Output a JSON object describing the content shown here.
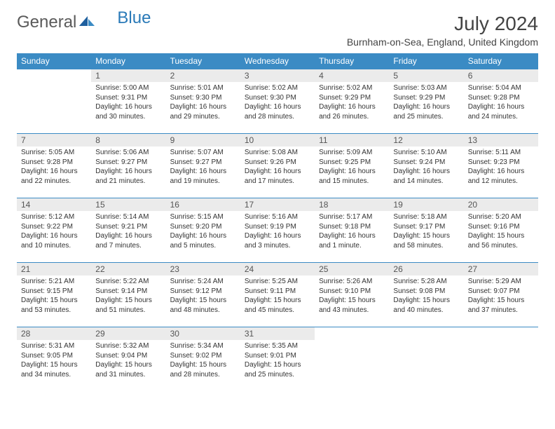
{
  "brand": {
    "part1": "General",
    "part2": "Blue"
  },
  "title": "July 2024",
  "location": "Burnham-on-Sea, England, United Kingdom",
  "colors": {
    "header_bg": "#3b8bc4",
    "header_text": "#ffffff",
    "daynum_bg": "#ebebeb",
    "border": "#3b8bc4",
    "text": "#333333",
    "logo_gray": "#5a5a5a",
    "logo_blue": "#2a7ab8"
  },
  "weekdays": [
    "Sunday",
    "Monday",
    "Tuesday",
    "Wednesday",
    "Thursday",
    "Friday",
    "Saturday"
  ],
  "weeks": [
    [
      null,
      {
        "n": "1",
        "sr": "Sunrise: 5:00 AM",
        "ss": "Sunset: 9:31 PM",
        "d1": "Daylight: 16 hours",
        "d2": "and 30 minutes."
      },
      {
        "n": "2",
        "sr": "Sunrise: 5:01 AM",
        "ss": "Sunset: 9:30 PM",
        "d1": "Daylight: 16 hours",
        "d2": "and 29 minutes."
      },
      {
        "n": "3",
        "sr": "Sunrise: 5:02 AM",
        "ss": "Sunset: 9:30 PM",
        "d1": "Daylight: 16 hours",
        "d2": "and 28 minutes."
      },
      {
        "n": "4",
        "sr": "Sunrise: 5:02 AM",
        "ss": "Sunset: 9:29 PM",
        "d1": "Daylight: 16 hours",
        "d2": "and 26 minutes."
      },
      {
        "n": "5",
        "sr": "Sunrise: 5:03 AM",
        "ss": "Sunset: 9:29 PM",
        "d1": "Daylight: 16 hours",
        "d2": "and 25 minutes."
      },
      {
        "n": "6",
        "sr": "Sunrise: 5:04 AM",
        "ss": "Sunset: 9:28 PM",
        "d1": "Daylight: 16 hours",
        "d2": "and 24 minutes."
      }
    ],
    [
      {
        "n": "7",
        "sr": "Sunrise: 5:05 AM",
        "ss": "Sunset: 9:28 PM",
        "d1": "Daylight: 16 hours",
        "d2": "and 22 minutes."
      },
      {
        "n": "8",
        "sr": "Sunrise: 5:06 AM",
        "ss": "Sunset: 9:27 PM",
        "d1": "Daylight: 16 hours",
        "d2": "and 21 minutes."
      },
      {
        "n": "9",
        "sr": "Sunrise: 5:07 AM",
        "ss": "Sunset: 9:27 PM",
        "d1": "Daylight: 16 hours",
        "d2": "and 19 minutes."
      },
      {
        "n": "10",
        "sr": "Sunrise: 5:08 AM",
        "ss": "Sunset: 9:26 PM",
        "d1": "Daylight: 16 hours",
        "d2": "and 17 minutes."
      },
      {
        "n": "11",
        "sr": "Sunrise: 5:09 AM",
        "ss": "Sunset: 9:25 PM",
        "d1": "Daylight: 16 hours",
        "d2": "and 15 minutes."
      },
      {
        "n": "12",
        "sr": "Sunrise: 5:10 AM",
        "ss": "Sunset: 9:24 PM",
        "d1": "Daylight: 16 hours",
        "d2": "and 14 minutes."
      },
      {
        "n": "13",
        "sr": "Sunrise: 5:11 AM",
        "ss": "Sunset: 9:23 PM",
        "d1": "Daylight: 16 hours",
        "d2": "and 12 minutes."
      }
    ],
    [
      {
        "n": "14",
        "sr": "Sunrise: 5:12 AM",
        "ss": "Sunset: 9:22 PM",
        "d1": "Daylight: 16 hours",
        "d2": "and 10 minutes."
      },
      {
        "n": "15",
        "sr": "Sunrise: 5:14 AM",
        "ss": "Sunset: 9:21 PM",
        "d1": "Daylight: 16 hours",
        "d2": "and 7 minutes."
      },
      {
        "n": "16",
        "sr": "Sunrise: 5:15 AM",
        "ss": "Sunset: 9:20 PM",
        "d1": "Daylight: 16 hours",
        "d2": "and 5 minutes."
      },
      {
        "n": "17",
        "sr": "Sunrise: 5:16 AM",
        "ss": "Sunset: 9:19 PM",
        "d1": "Daylight: 16 hours",
        "d2": "and 3 minutes."
      },
      {
        "n": "18",
        "sr": "Sunrise: 5:17 AM",
        "ss": "Sunset: 9:18 PM",
        "d1": "Daylight: 16 hours",
        "d2": "and 1 minute."
      },
      {
        "n": "19",
        "sr": "Sunrise: 5:18 AM",
        "ss": "Sunset: 9:17 PM",
        "d1": "Daylight: 15 hours",
        "d2": "and 58 minutes."
      },
      {
        "n": "20",
        "sr": "Sunrise: 5:20 AM",
        "ss": "Sunset: 9:16 PM",
        "d1": "Daylight: 15 hours",
        "d2": "and 56 minutes."
      }
    ],
    [
      {
        "n": "21",
        "sr": "Sunrise: 5:21 AM",
        "ss": "Sunset: 9:15 PM",
        "d1": "Daylight: 15 hours",
        "d2": "and 53 minutes."
      },
      {
        "n": "22",
        "sr": "Sunrise: 5:22 AM",
        "ss": "Sunset: 9:14 PM",
        "d1": "Daylight: 15 hours",
        "d2": "and 51 minutes."
      },
      {
        "n": "23",
        "sr": "Sunrise: 5:24 AM",
        "ss": "Sunset: 9:12 PM",
        "d1": "Daylight: 15 hours",
        "d2": "and 48 minutes."
      },
      {
        "n": "24",
        "sr": "Sunrise: 5:25 AM",
        "ss": "Sunset: 9:11 PM",
        "d1": "Daylight: 15 hours",
        "d2": "and 45 minutes."
      },
      {
        "n": "25",
        "sr": "Sunrise: 5:26 AM",
        "ss": "Sunset: 9:10 PM",
        "d1": "Daylight: 15 hours",
        "d2": "and 43 minutes."
      },
      {
        "n": "26",
        "sr": "Sunrise: 5:28 AM",
        "ss": "Sunset: 9:08 PM",
        "d1": "Daylight: 15 hours",
        "d2": "and 40 minutes."
      },
      {
        "n": "27",
        "sr": "Sunrise: 5:29 AM",
        "ss": "Sunset: 9:07 PM",
        "d1": "Daylight: 15 hours",
        "d2": "and 37 minutes."
      }
    ],
    [
      {
        "n": "28",
        "sr": "Sunrise: 5:31 AM",
        "ss": "Sunset: 9:05 PM",
        "d1": "Daylight: 15 hours",
        "d2": "and 34 minutes."
      },
      {
        "n": "29",
        "sr": "Sunrise: 5:32 AM",
        "ss": "Sunset: 9:04 PM",
        "d1": "Daylight: 15 hours",
        "d2": "and 31 minutes."
      },
      {
        "n": "30",
        "sr": "Sunrise: 5:34 AM",
        "ss": "Sunset: 9:02 PM",
        "d1": "Daylight: 15 hours",
        "d2": "and 28 minutes."
      },
      {
        "n": "31",
        "sr": "Sunrise: 5:35 AM",
        "ss": "Sunset: 9:01 PM",
        "d1": "Daylight: 15 hours",
        "d2": "and 25 minutes."
      },
      null,
      null,
      null
    ]
  ]
}
